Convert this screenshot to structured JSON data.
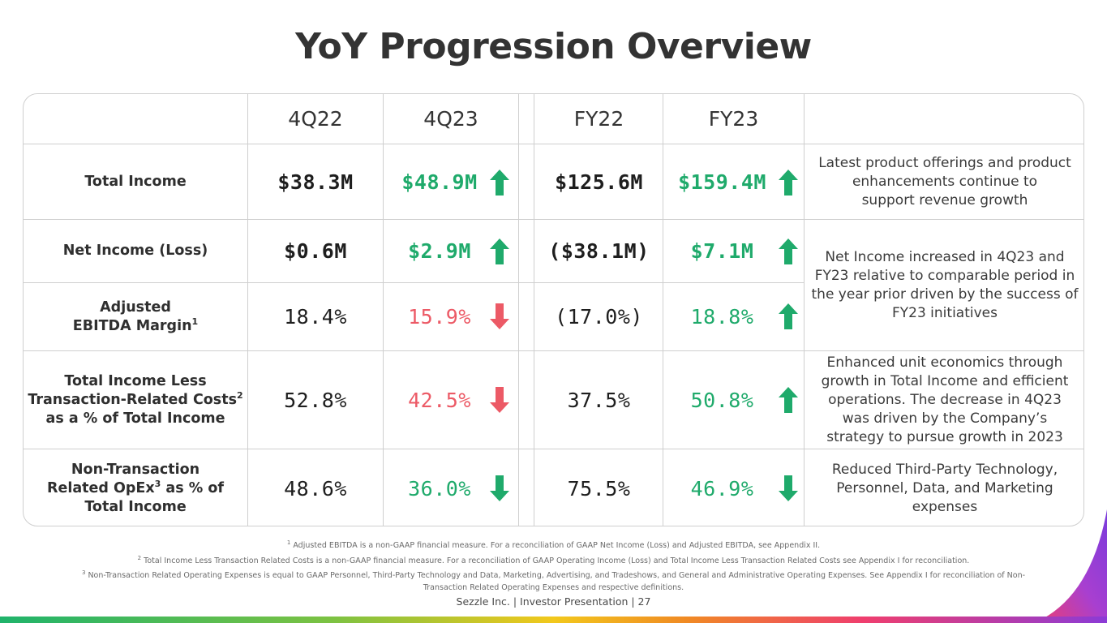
{
  "title": "YoY Progression Overview",
  "columns": [
    "4Q22",
    "4Q23",
    "FY22",
    "FY23"
  ],
  "rows": [
    {
      "label_lines": [
        "Total Income"
      ],
      "values": [
        "$38.3M",
        "$48.9M",
        "$125.6M",
        "$159.4M"
      ],
      "trend_4q": "up",
      "trend_fy": "up"
    },
    {
      "label_lines": [
        "Net Income (Loss)"
      ],
      "values": [
        "$0.6M",
        "$2.9M",
        "($38.1M)",
        "$7.1M"
      ],
      "trend_4q": "up",
      "trend_fy": "up"
    },
    {
      "label_lines": [
        "Adjusted",
        "EBITDA Margin"
      ],
      "label_sup": "1",
      "values": [
        "18.4%",
        "15.9%",
        "(17.0%)",
        "18.8%"
      ],
      "trend_4q": "down",
      "trend_fy": "up"
    },
    {
      "label_lines": [
        "Total Income Less",
        "Transaction-Related Costs",
        "as a % of Total Income"
      ],
      "label_sup": "2",
      "values": [
        "52.8%",
        "42.5%",
        "37.5%",
        "50.8%"
      ],
      "trend_4q": "down",
      "trend_fy": "up"
    },
    {
      "label_lines": [
        "Non-Transaction",
        "Related OpEx",
        " as % of",
        "Total Income"
      ],
      "label_sup": "3",
      "values": [
        "48.6%",
        "36.0%",
        "75.5%",
        "46.9%"
      ],
      "trend_4q": "down",
      "trend_fy": "down"
    }
  ],
  "descriptions": [
    [
      "Latest product offerings and product",
      "enhancements continue to",
      "support revenue growth"
    ],
    [
      "Net Income increased in 4Q23 and",
      "FY23 relative to comparable period in",
      "the year prior driven by the success of",
      "FY23 initiatives"
    ],
    [
      "Enhanced unit economics through",
      "growth in Total Income and efficient",
      "operations. The decrease in 4Q23",
      "was driven by the Company’s",
      "strategy to pursue growth in 2023"
    ],
    [
      "Reduced Third-Party Technology,",
      "Personnel, Data, and Marketing",
      "expenses"
    ]
  ],
  "footnotes": {
    "n1": "1",
    "f1": "Adjusted EBITDA is a non-GAAP financial measure. For a reconciliation of GAAP Net Income (Loss) and Adjusted EBITDA, see Appendix II.",
    "n2": "2",
    "f2": "Total Income Less Transaction Related Costs is a non-GAAP financial measure. For a reconciliation of GAAP Operating Income (Loss) and Total Income Less Transaction Related Costs see Appendix I for reconciliation.",
    "n3": "3",
    "f3a": "Non-Transaction Related Operating Expenses is equal to GAAP Personnel, Third-Party Technology and Data, Marketing, Advertising, and Tradeshows, and General and Administrative Operating Expenses. See Appendix I for reconciliation of Non-",
    "f3b": "Transaction Related Operating Expenses and respective definitions."
  },
  "footer": "Sezzle Inc. | Investor Presentation | 27",
  "colors": {
    "up": "#1faa6b",
    "down_red": "#ec5a66",
    "down_green": "#1faa6b"
  },
  "icons": {
    "up": "arrow-up-icon",
    "down": "arrow-down-icon"
  }
}
